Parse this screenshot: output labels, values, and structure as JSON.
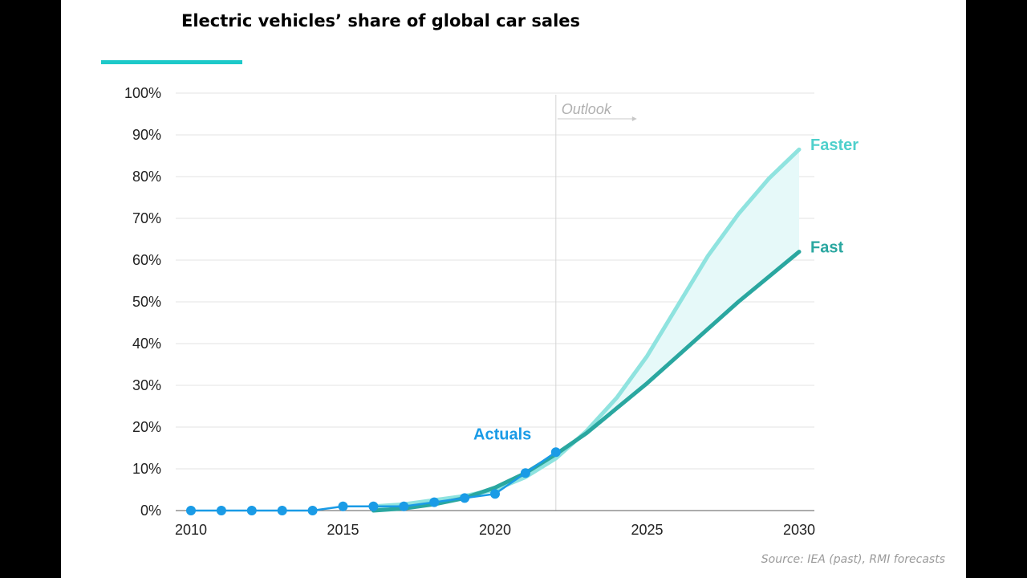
{
  "title": "Electric vehicles’ share of global car sales",
  "source": "Source: IEA (past), RMI forecasts",
  "colors": {
    "accent": "#1dc9c9",
    "actuals": "#1a9be6",
    "fast": "#2aa7a0",
    "faster": "#8fe3df",
    "band_fill": "#e6f9f9",
    "grid": "#e3e3e3"
  },
  "chart_data": {
    "type": "line",
    "title": "Electric vehicles’ share of global car sales",
    "xlabel": "",
    "ylabel": "",
    "xlim": [
      2010,
      2030
    ],
    "ylim": [
      0,
      100
    ],
    "grid": true,
    "x_ticks": [
      2010,
      2015,
      2020,
      2025,
      2030
    ],
    "y_ticks": [
      0,
      10,
      20,
      30,
      40,
      50,
      60,
      70,
      80,
      90,
      100
    ],
    "y_tick_suffix": "%",
    "outlook": {
      "label": "Outlook",
      "x": 2022
    },
    "band_between": [
      "Fast",
      "Faster"
    ],
    "series": [
      {
        "name": "Actuals",
        "color_key": "actuals",
        "markers": true,
        "x": [
          2010,
          2011,
          2012,
          2013,
          2014,
          2015,
          2016,
          2017,
          2018,
          2019,
          2020,
          2021,
          2022
        ],
        "values": [
          0,
          0,
          0,
          0,
          0,
          1,
          1,
          1,
          2,
          3,
          4,
          9,
          14
        ]
      },
      {
        "name": "Fast",
        "color_key": "fast",
        "markers": false,
        "x": [
          2016,
          2017,
          2018,
          2019,
          2020,
          2021,
          2022,
          2023,
          2024,
          2025,
          2026,
          2027,
          2028,
          2029,
          2030
        ],
        "values": [
          0,
          0.5,
          1.5,
          3,
          5.5,
          9,
          13.5,
          18.5,
          24.5,
          30.5,
          37,
          43.5,
          50,
          56,
          62
        ]
      },
      {
        "name": "Faster",
        "color_key": "faster",
        "markers": false,
        "x": [
          2016,
          2017,
          2018,
          2019,
          2020,
          2021,
          2022,
          2023,
          2024,
          2025,
          2026,
          2027,
          2028,
          2029,
          2030
        ],
        "values": [
          1,
          1.5,
          2.5,
          3.5,
          5,
          8,
          12.5,
          19,
          27,
          37,
          49,
          61,
          71,
          79.5,
          86.5
        ]
      }
    ]
  }
}
